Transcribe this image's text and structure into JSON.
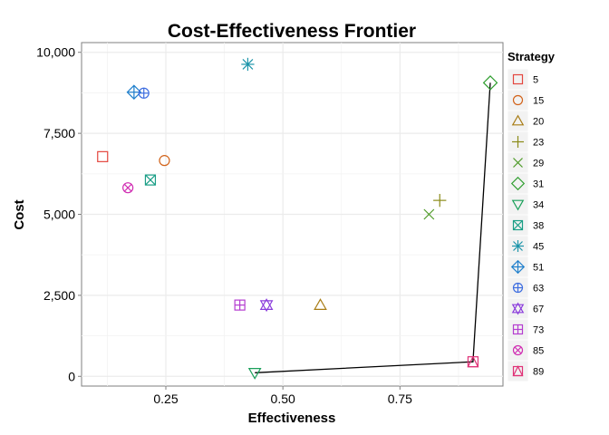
{
  "chart_data": {
    "type": "scatter",
    "title": "Cost-Effectiveness Frontier",
    "xlabel": "Effectiveness",
    "ylabel": "Cost",
    "xlim": [
      0.07,
      0.97
    ],
    "ylim": [
      -300,
      10300
    ],
    "xticks": [
      0.25,
      0.5,
      0.75
    ],
    "xtick_labels": [
      "0.25",
      "0.50",
      "0.75"
    ],
    "yticks": [
      0,
      2500,
      5000,
      7500,
      10000
    ],
    "ytick_labels": [
      "0",
      "2,500",
      "5,000",
      "7,500",
      "10,000"
    ],
    "grid": true,
    "legend_title": "Strategy",
    "legend_position": "right",
    "points": [
      {
        "strategy": "5",
        "x": 0.115,
        "y": 6780,
        "shape": "square",
        "color": "#E4463E"
      },
      {
        "strategy": "15",
        "x": 0.247,
        "y": 6660,
        "shape": "circle",
        "color": "#D2631A"
      },
      {
        "strategy": "20",
        "x": 0.58,
        "y": 2200,
        "shape": "triangle",
        "color": "#A87C15"
      },
      {
        "strategy": "23",
        "x": 0.835,
        "y": 5430,
        "shape": "plus",
        "color": "#8B8B19"
      },
      {
        "strategy": "29",
        "x": 0.812,
        "y": 5000,
        "shape": "x",
        "color": "#4D9A26"
      },
      {
        "strategy": "31",
        "x": 0.943,
        "y": 9060,
        "shape": "diamond",
        "color": "#2E9E2E"
      },
      {
        "strategy": "34",
        "x": 0.44,
        "y": 110,
        "shape": "triangle-down",
        "color": "#1AA05A"
      },
      {
        "strategy": "38",
        "x": 0.217,
        "y": 6060,
        "shape": "square-x",
        "color": "#1A9E86"
      },
      {
        "strategy": "45",
        "x": 0.425,
        "y": 9630,
        "shape": "asterisk",
        "color": "#1D95AA"
      },
      {
        "strategy": "51",
        "x": 0.182,
        "y": 8770,
        "shape": "diamond-plus",
        "color": "#1F7FCC"
      },
      {
        "strategy": "63",
        "x": 0.203,
        "y": 8740,
        "shape": "circle-plus",
        "color": "#3D6DE0"
      },
      {
        "strategy": "67",
        "x": 0.465,
        "y": 2200,
        "shape": "star-of-david",
        "color": "#8B3DDC"
      },
      {
        "strategy": "73",
        "x": 0.408,
        "y": 2200,
        "shape": "square-plus",
        "color": "#B43DD0"
      },
      {
        "strategy": "85",
        "x": 0.169,
        "y": 5820,
        "shape": "circle-x",
        "color": "#D02DB2"
      },
      {
        "strategy": "89",
        "x": 0.906,
        "y": 450,
        "shape": "square-triangle",
        "color": "#E03277"
      }
    ],
    "frontier": {
      "strategies": [
        "34",
        "89",
        "31"
      ],
      "x": [
        0.44,
        0.906,
        0.943
      ],
      "y": [
        110,
        450,
        9060
      ]
    }
  }
}
